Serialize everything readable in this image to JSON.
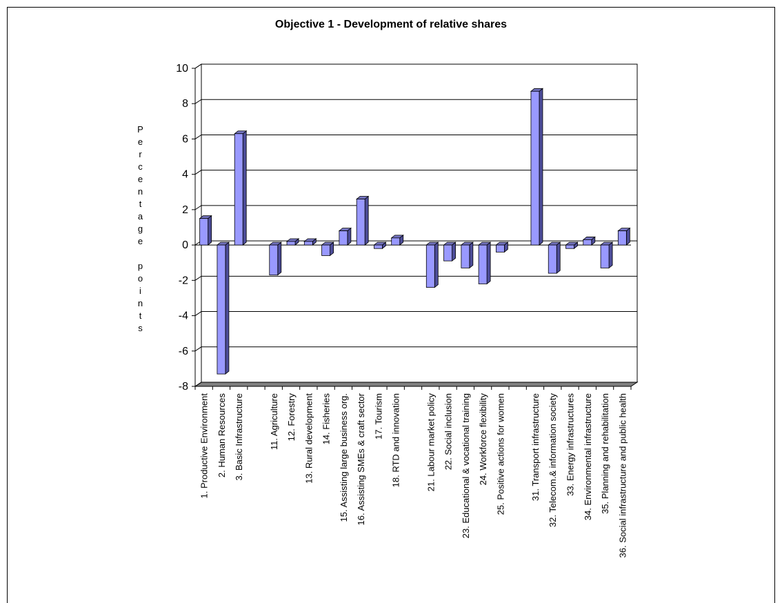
{
  "chart_data": {
    "type": "bar3d",
    "title": "Objective 1 - Development of relative shares",
    "ylabel": "Percentage points",
    "categories": [
      "1. Productive Environment",
      "2. Human Resources",
      "3. Basic Infrastructure",
      null,
      "11. Agriculture",
      "12. Forestry",
      "13. Rural development",
      "14. Fisheries",
      "15. Assisting large business org.",
      "16. Assisting SMEs & craft sector",
      "17. Tourism",
      "18. RTD and innovation",
      null,
      "21. Labour market policy",
      "22. Social inclusion",
      "23. Educational & vocational training",
      "24. Workforce flexibility",
      "25. Positive actions for women",
      null,
      "31. Transport infrastructure",
      "32. Telecom.& information society",
      "33. Energy infrastructures",
      "34. Environmental infrastructure",
      "35. Planning and rehabilitation",
      "36. Social infrastructure and public health"
    ],
    "values": [
      1.5,
      -7.3,
      6.3,
      null,
      -1.7,
      0.2,
      0.2,
      -0.6,
      0.8,
      2.6,
      -0.2,
      0.4,
      null,
      -2.4,
      -0.9,
      -1.3,
      -2.2,
      -0.4,
      null,
      8.7,
      -1.6,
      -0.2,
      0.3,
      -1.3,
      0.8
    ],
    "color": "#9999ff",
    "ylim": [
      -8,
      10
    ],
    "yticks": [
      -8,
      -6,
      -4,
      -2,
      0,
      2,
      4,
      6,
      8,
      10
    ],
    "grid": true
  }
}
